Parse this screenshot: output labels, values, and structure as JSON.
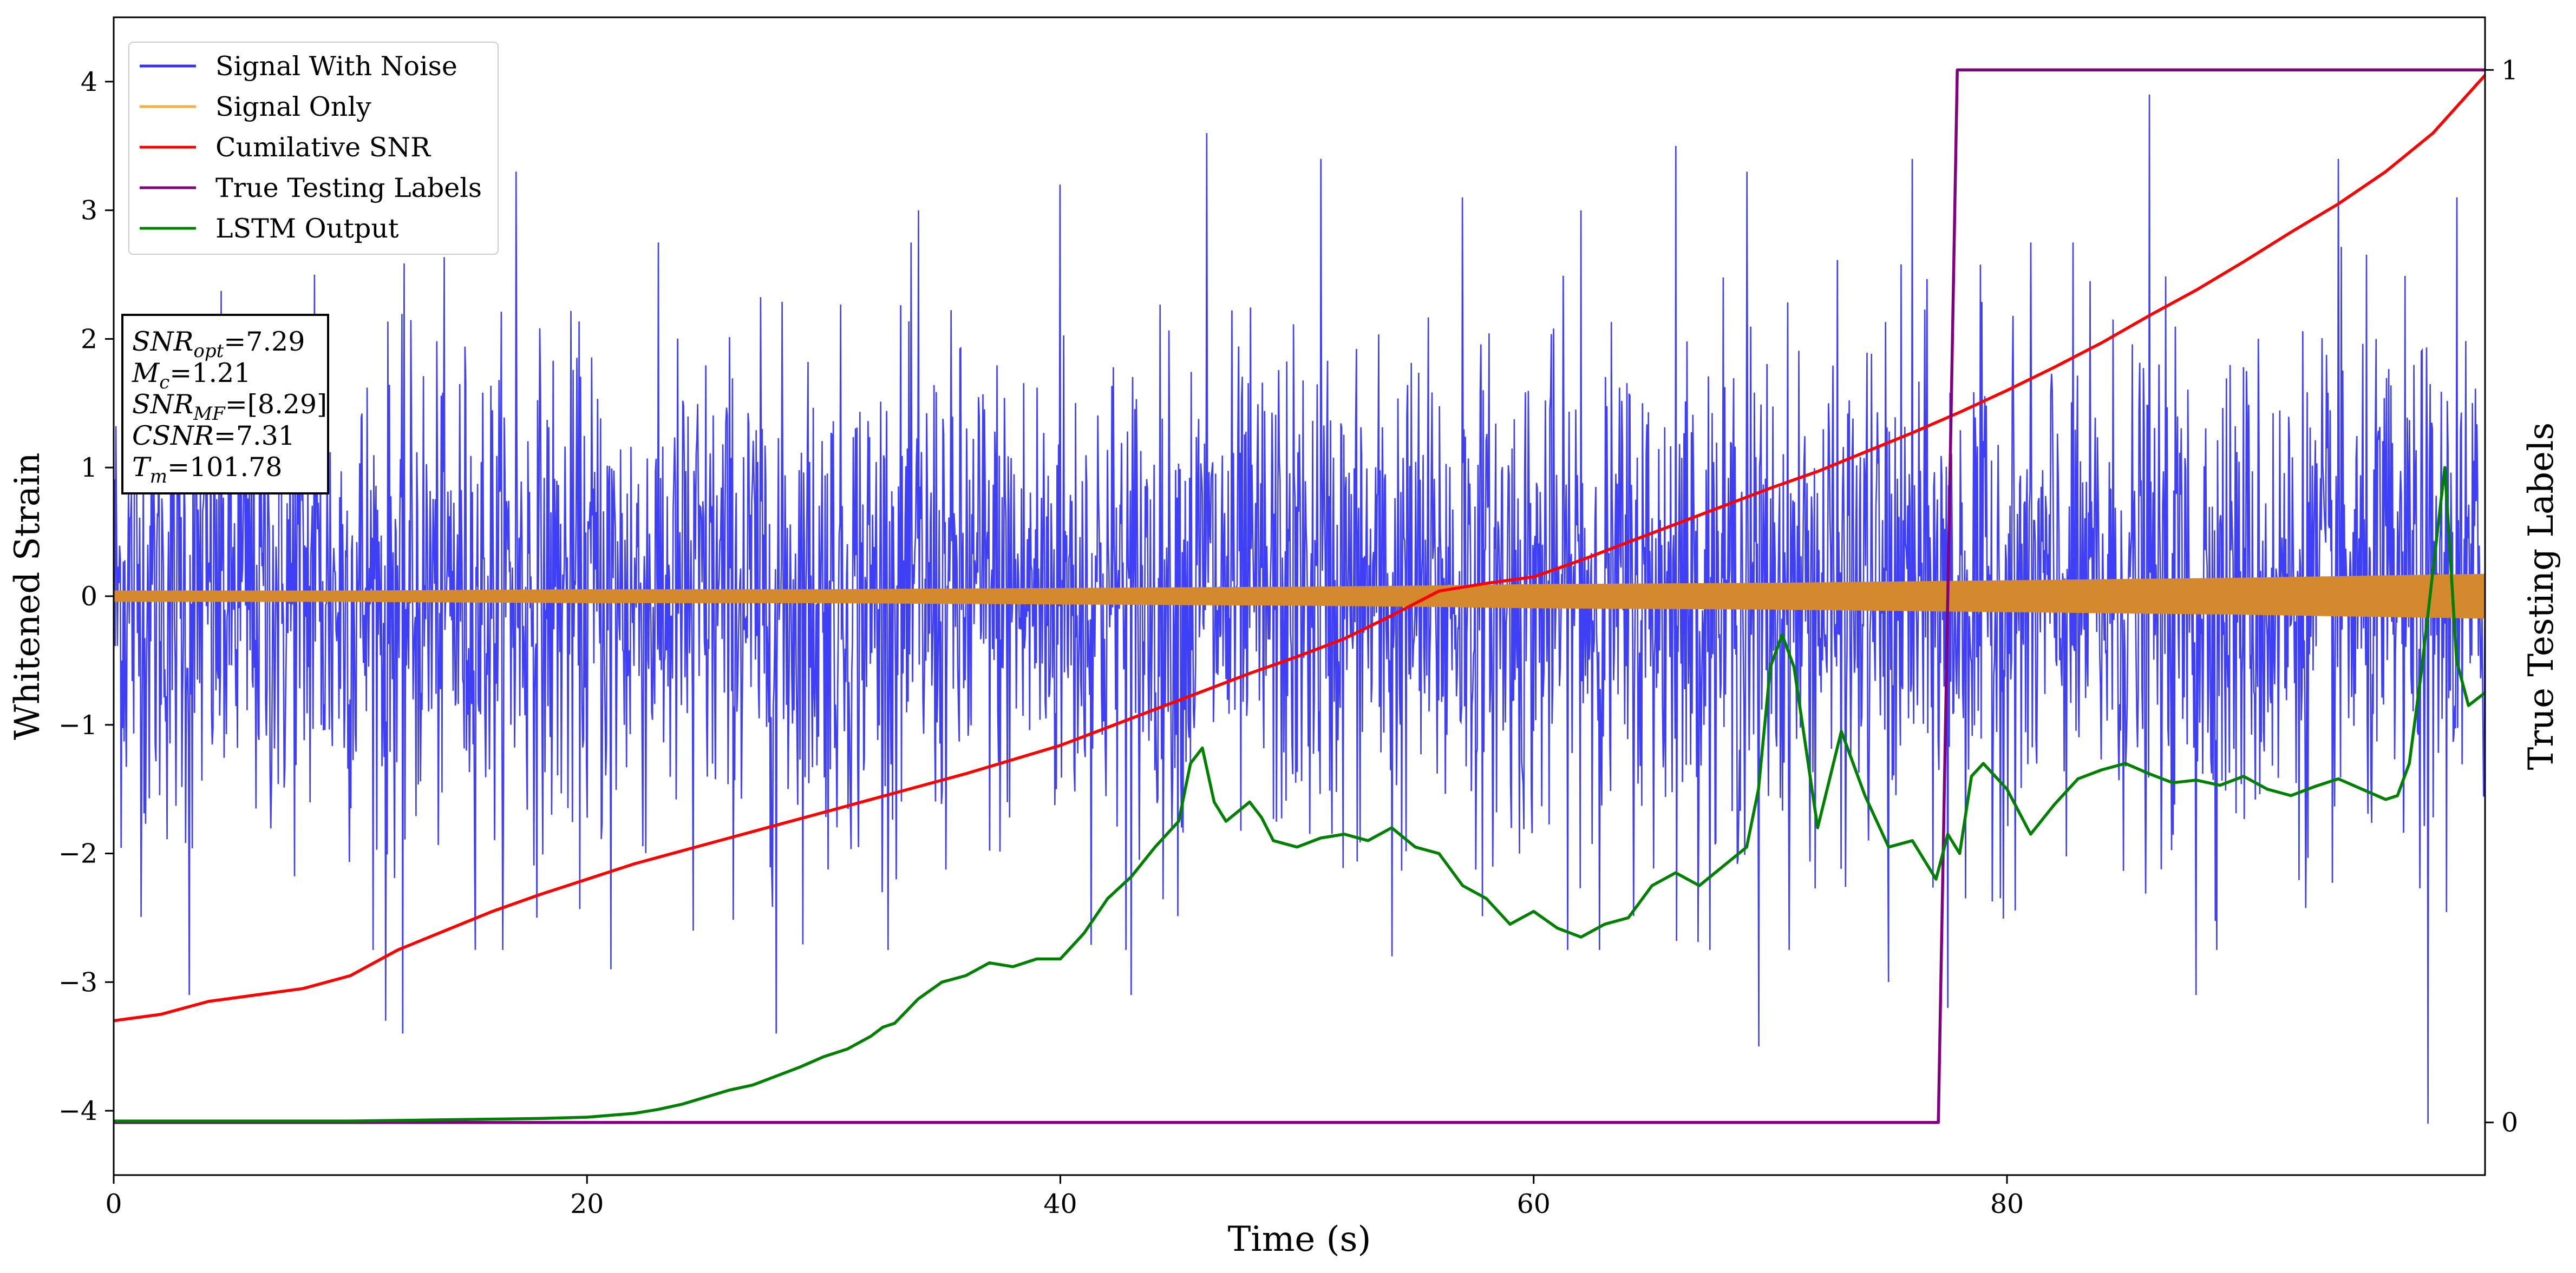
{
  "chart_data": {
    "type": "line",
    "xlabel": "Time (s)",
    "ylabel": "Whitened Strain",
    "y2label": "True Testing Labels",
    "xlim": [
      0,
      100.2
    ],
    "ylim": [
      -4.5,
      4.5
    ],
    "y2lim": [
      -0.05,
      1.05
    ],
    "x_ticks": [
      0,
      20,
      40,
      60,
      80
    ],
    "x_tick_labels": [
      "0",
      "20",
      "40",
      "60",
      "80"
    ],
    "y_ticks": [
      4,
      3,
      2,
      1,
      0,
      -1,
      -2,
      -3,
      -4
    ],
    "y_tick_labels": [
      "4",
      "3",
      "2",
      "1",
      "0",
      "−1",
      "−2",
      "−3",
      "−4"
    ],
    "y2_ticks": [
      1,
      0
    ],
    "y2_tick_labels": [
      "1",
      "0"
    ],
    "legend_position": "top-left",
    "legend": [
      {
        "name": "Signal With Noise",
        "color": "#2f2ff5"
      },
      {
        "name": "Signal Only",
        "color": "#f5b041"
      },
      {
        "name": "Cumilative SNR",
        "color": "#ff0000"
      },
      {
        "name": "True Testing Labels",
        "color": "#800080"
      },
      {
        "name": "LSTM Output",
        "color": "#008000"
      }
    ],
    "annotations": {
      "snr_opt": {
        "label": "SNR",
        "sub": "opt",
        "value": "=7.29"
      },
      "m_c": {
        "label": "M",
        "sub": "c",
        "value": "=1.21"
      },
      "snr_mf": {
        "label": "SNR",
        "sub": "MF",
        "value": "=[8.29]"
      },
      "csnr": {
        "label": "CSNR",
        "sub": "",
        "value": "=7.31"
      },
      "t_m": {
        "label": "T",
        "sub": "m",
        "value": "=101.78"
      }
    },
    "series": [
      {
        "name": "Signal With Noise",
        "color": "#2f2ff5",
        "style": "noise",
        "std": 0.95,
        "peaks": [
          [
            3.2,
            -3.1
          ],
          [
            8.5,
            2.5
          ],
          [
            11.5,
            -3.3
          ],
          [
            12.2,
            -3.4
          ],
          [
            17,
            3.3
          ],
          [
            21,
            -2.9
          ],
          [
            24.5,
            -2.6
          ],
          [
            28,
            -3.4
          ],
          [
            34,
            3.0
          ],
          [
            40,
            3.2
          ],
          [
            43,
            -3.1
          ],
          [
            46.2,
            3.6
          ],
          [
            51,
            3.4
          ],
          [
            54,
            -2.8
          ],
          [
            57,
            3.1
          ],
          [
            62,
            3.0
          ],
          [
            66,
            3.5
          ],
          [
            69,
            3.3
          ],
          [
            69.5,
            -3.5
          ],
          [
            75,
            -3.0
          ],
          [
            76,
            3.4
          ],
          [
            77.5,
            -3.2
          ],
          [
            86,
            3.9
          ],
          [
            88,
            -3.1
          ],
          [
            94,
            3.4
          ],
          [
            97.8,
            -4.1
          ],
          [
            99,
            3.1
          ]
        ]
      },
      {
        "name": "Signal Only",
        "color": "#f5b041",
        "fill": "#d48a2c",
        "style": "envelope",
        "x": [
          0,
          10,
          20,
          30,
          40,
          50,
          56,
          60,
          70,
          80,
          90,
          100.2
        ],
        "amplitude": [
          0.04,
          0.04,
          0.05,
          0.05,
          0.06,
          0.07,
          0.08,
          0.09,
          0.1,
          0.12,
          0.14,
          0.17
        ]
      },
      {
        "name": "Cumilative SNR",
        "color": "#ff0000",
        "axis": "left",
        "x": [
          0,
          2,
          4,
          6,
          8,
          10,
          12,
          14,
          16,
          18,
          20,
          22,
          24,
          26,
          28,
          30,
          32,
          34,
          36,
          38,
          40,
          42,
          44,
          46,
          48,
          50,
          52,
          54,
          56,
          58,
          60,
          62,
          64,
          66,
          68,
          70,
          72,
          74,
          76,
          78,
          80,
          82,
          84,
          86,
          88,
          90,
          92,
          94,
          96,
          98,
          100.2
        ],
        "y": [
          -3.3,
          -3.25,
          -3.15,
          -3.1,
          -3.05,
          -2.95,
          -2.75,
          -2.6,
          -2.45,
          -2.32,
          -2.2,
          -2.08,
          -1.98,
          -1.88,
          -1.78,
          -1.68,
          -1.58,
          -1.48,
          -1.38,
          -1.27,
          -1.16,
          -1.02,
          -0.88,
          -0.74,
          -0.6,
          -0.47,
          -0.33,
          -0.15,
          0.04,
          0.1,
          0.15,
          0.28,
          0.42,
          0.56,
          0.7,
          0.84,
          0.97,
          1.12,
          1.27,
          1.43,
          1.6,
          1.78,
          1.97,
          2.18,
          2.38,
          2.6,
          2.83,
          3.05,
          3.3,
          3.6,
          4.05
        ]
      },
      {
        "name": "True Testing Labels",
        "color": "#800080",
        "axis": "right",
        "x": [
          0,
          77.1,
          77.9,
          100.2
        ],
        "y": [
          0,
          0,
          1,
          1
        ]
      },
      {
        "name": "LSTM Output",
        "color": "#008000",
        "axis": "left",
        "x": [
          0,
          10,
          14,
          18,
          20,
          22,
          23,
          24,
          26,
          27,
          28,
          29,
          30,
          31,
          32,
          32.5,
          33,
          34,
          35,
          36,
          37,
          38,
          39,
          40,
          41,
          42,
          43,
          44,
          45,
          45.5,
          46,
          46.5,
          47,
          48,
          48.5,
          49,
          50,
          51,
          52,
          53,
          54,
          55,
          56,
          57,
          58,
          59,
          60,
          61,
          62,
          63,
          64,
          65,
          66,
          67,
          68,
          69,
          69.5,
          70,
          70.5,
          71,
          72,
          73,
          74,
          75,
          76,
          77,
          77.5,
          78,
          78.5,
          79,
          80,
          81,
          82,
          83,
          84,
          85,
          86,
          87,
          88,
          89,
          90,
          91,
          92,
          93,
          94,
          95,
          96,
          96.5,
          97,
          97.5,
          98,
          98.5,
          99,
          99.5,
          100.2
        ],
        "y": [
          -4.08,
          -4.08,
          -4.07,
          -4.06,
          -4.05,
          -4.02,
          -3.99,
          -3.95,
          -3.84,
          -3.8,
          -3.73,
          -3.66,
          -3.58,
          -3.52,
          -3.42,
          -3.35,
          -3.32,
          -3.13,
          -3.0,
          -2.95,
          -2.85,
          -2.88,
          -2.82,
          -2.82,
          -2.62,
          -2.35,
          -2.18,
          -1.95,
          -1.75,
          -1.3,
          -1.18,
          -1.6,
          -1.75,
          -1.6,
          -1.72,
          -1.9,
          -1.95,
          -1.88,
          -1.85,
          -1.9,
          -1.8,
          -1.95,
          -2.0,
          -2.25,
          -2.35,
          -2.55,
          -2.45,
          -2.58,
          -2.65,
          -2.55,
          -2.5,
          -2.25,
          -2.15,
          -2.25,
          -2.1,
          -1.95,
          -1.5,
          -0.55,
          -0.3,
          -0.55,
          -1.8,
          -1.05,
          -1.55,
          -1.95,
          -1.9,
          -2.2,
          -1.85,
          -2.0,
          -1.4,
          -1.3,
          -1.5,
          -1.85,
          -1.62,
          -1.42,
          -1.35,
          -1.3,
          -1.38,
          -1.45,
          -1.43,
          -1.47,
          -1.4,
          -1.5,
          -1.55,
          -1.48,
          -1.42,
          -1.5,
          -1.58,
          -1.55,
          -1.3,
          -0.6,
          0.2,
          1.0,
          -0.5,
          -0.85,
          -0.75
        ]
      }
    ]
  }
}
